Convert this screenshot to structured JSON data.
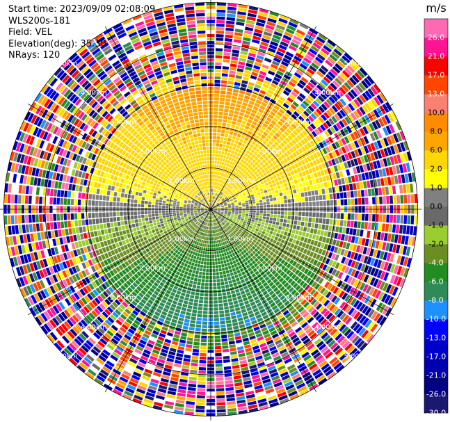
{
  "header": {
    "start_time": "Start time: 2023/09/09 02:08:09",
    "instrument": "WLS200s-181",
    "field": "Field: VEL",
    "elevation": "Elevation(deg): 35.30",
    "nrays": "NRays: 120"
  },
  "chart_data": {
    "type": "heatmap",
    "projection": "polar-ppi",
    "field": "VEL",
    "rays": 120,
    "range_ring_labels": [
      "1.00km",
      "2.00km",
      "3.00km",
      "4.00km",
      "5.00km"
    ],
    "range_rings_km": [
      1,
      2,
      3,
      4,
      5
    ],
    "max_range_km": 5.1,
    "colorbar": {
      "unit": "m/s",
      "levels": [
        -30.0,
        -26.0,
        -21.0,
        -17.0,
        -13.0,
        -10.0,
        -8.0,
        -6.0,
        -4.0,
        -2.0,
        -1.0,
        0.0,
        1.0,
        2.0,
        6.0,
        8.0,
        10.0,
        13.0,
        17.0,
        21.0,
        26.0,
        30.0
      ],
      "tick_labels": [
        "-30.0",
        "-26.0",
        "-21.0",
        "-17.0",
        "-13.0",
        "-10.0",
        "-8.0",
        "-6.0",
        "-4.0",
        "-2.0",
        "-1.0",
        "0.0",
        "1.0",
        "2.0",
        "6.0",
        "8.0",
        "10.0",
        "13.0",
        "17.0",
        "21.0",
        "26.0"
      ],
      "colors": [
        "#191970",
        "#000080",
        "#0000b0",
        "#0000cd",
        "#0000ff",
        "#1e90ff",
        "#2e8b57",
        "#228b22",
        "#6b8e23",
        "#9acd32",
        "#696969",
        "#808080",
        "#ffff00",
        "#ffd700",
        "#ffa500",
        "#ff8c00",
        "#fa8072",
        "#ff4500",
        "#ff0000",
        "#ff1493",
        "#ff69b4"
      ]
    },
    "notes": "Velocity pattern: positive (yellow/orange) to the north, negative (green) to the south; noisy multicolour values beyond ~3 km."
  }
}
